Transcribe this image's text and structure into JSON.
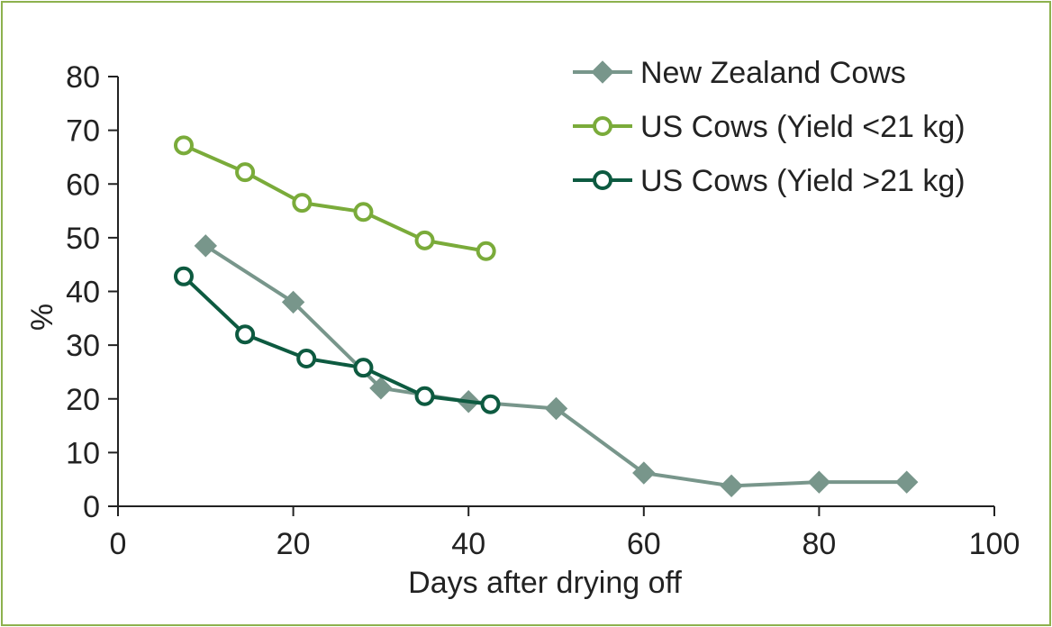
{
  "chart_data": {
    "type": "line",
    "xlabel": "Days after drying off",
    "ylabel": "%",
    "xlim": [
      0,
      100
    ],
    "ylim": [
      0,
      80
    ],
    "x_ticks": [
      0,
      20,
      40,
      60,
      80,
      100
    ],
    "y_ticks": [
      0,
      10,
      20,
      30,
      40,
      50,
      60,
      70,
      80
    ],
    "legend_position": "top-right",
    "grid": false,
    "series": [
      {
        "name": "New Zealand Cows",
        "color": "#78968b",
        "marker": "diamond",
        "x": [
          10,
          20,
          30,
          40,
          50,
          60,
          70,
          80,
          90
        ],
        "y": [
          48.5,
          38,
          22,
          19.5,
          18.2,
          6.2,
          3.8,
          4.5,
          4.5
        ]
      },
      {
        "name": "US Cows (Yield <21 kg)",
        "color": "#7aab3a",
        "marker": "open-circle",
        "x": [
          7.5,
          14.5,
          21,
          28,
          35,
          42
        ],
        "y": [
          67.2,
          62.2,
          56.5,
          54.8,
          49.5,
          47.5
        ]
      },
      {
        "name": "US Cows (Yield >21 kg)",
        "color": "#0d5a40",
        "marker": "open-circle",
        "x": [
          7.5,
          14.5,
          21.5,
          28,
          35,
          42.5
        ],
        "y": [
          42.8,
          32,
          27.5,
          25.8,
          20.5,
          19
        ]
      }
    ]
  }
}
